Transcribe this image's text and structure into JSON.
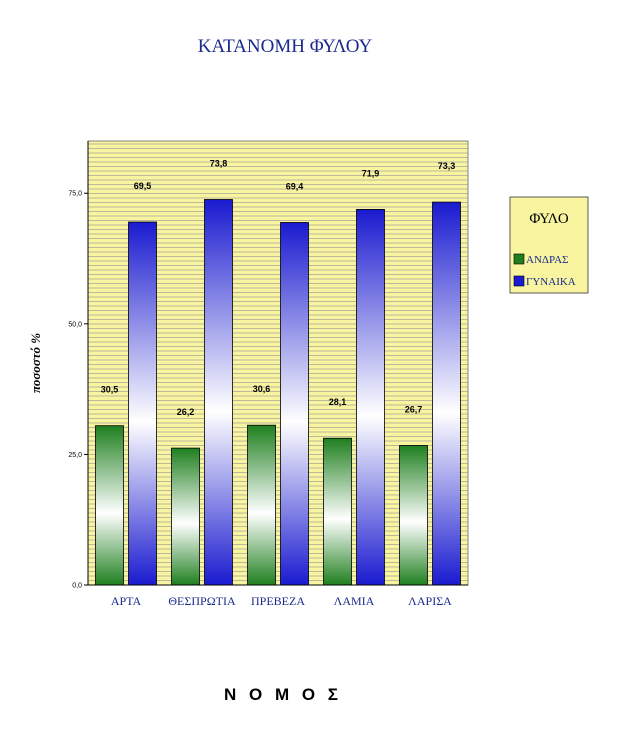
{
  "chart_data": {
    "type": "bar",
    "title": "ΚΑΤΑΝΟΜΗ ΦΥΛΟΥ",
    "xlabel": "Ν Ο Μ Ο Σ",
    "ylabel": "ποσοστό %",
    "categories": [
      "ΑΡΤΑ",
      "ΘΕΣΠΡΩΤΙΑ",
      "ΠΡΕΒΕΖΑ",
      "ΛΑΜΙΑ",
      "ΛΑΡΙΣΑ"
    ],
    "series": [
      {
        "name": "ΑΝΔΡΑΣ",
        "values": [
          30.5,
          26.2,
          30.6,
          28.1,
          26.7
        ],
        "labels": [
          "30,5",
          "26,2",
          "30,6",
          "28,1",
          "26,7"
        ],
        "color": "#1f7f1f"
      },
      {
        "name": "ΓΥΝΑΙΚΑ",
        "values": [
          69.5,
          73.8,
          69.4,
          71.9,
          73.3
        ],
        "labels": [
          "69,5",
          "73,8",
          "69,4",
          "71,9",
          "73,3"
        ],
        "color": "#1a1ad0"
      }
    ],
    "yticks": [
      0,
      25,
      50,
      75
    ],
    "ytick_labels": [
      "0,0",
      "25,0",
      "50,0",
      "75,0"
    ],
    "ylim": [
      0,
      85
    ],
    "grid": true,
    "background_color": "#f8f4a0",
    "legend_title": "ΦΥΛΟ",
    "legend_position": "right"
  }
}
